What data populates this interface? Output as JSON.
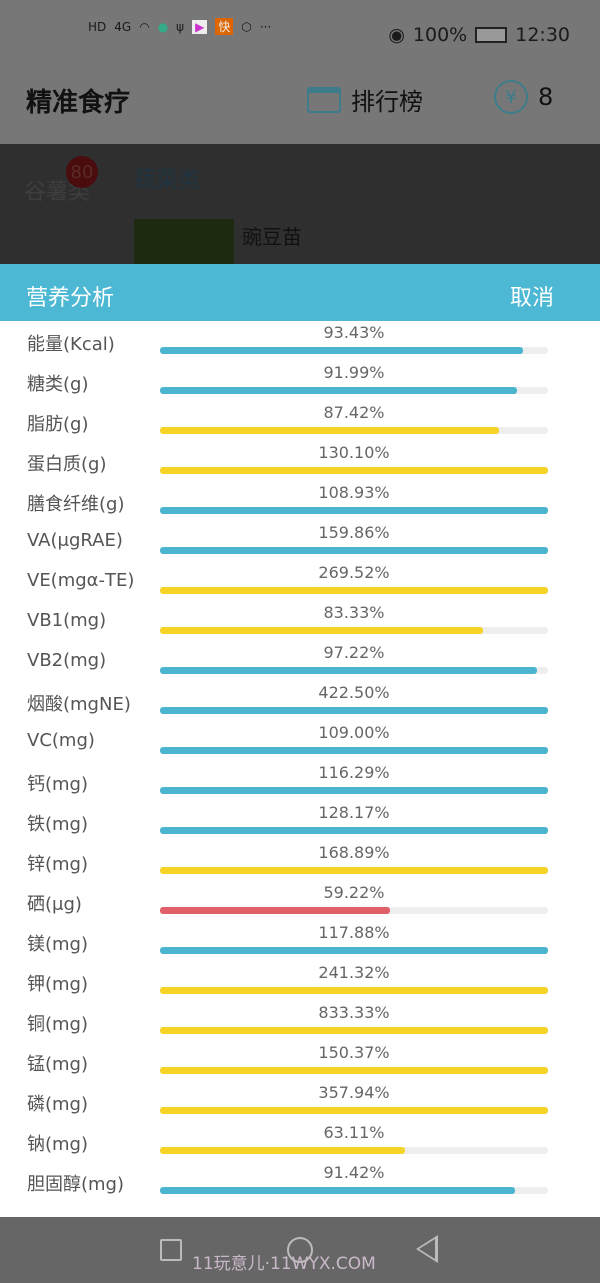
{
  "status_bar": {
    "battery": "100%",
    "time": "12:30",
    "network": "4G",
    "icons": [
      "hd-icon",
      "signal-icon",
      "wifi-icon",
      "app-icon",
      "usb-icon",
      "video-icon",
      "kuaishou-icon",
      "shield-icon",
      "more-icon",
      "eye-icon",
      "battery-icon"
    ]
  },
  "header": {
    "title": "精准食疗",
    "ranking_label": "排行榜",
    "coin_symbol": "¥",
    "coin_count": "8"
  },
  "background": {
    "category": "谷薯类",
    "badge": "80",
    "subcategory": "蔬菜类",
    "food_name": "豌豆苗"
  },
  "panel": {
    "title": "营养分析",
    "cancel_label": "取消"
  },
  "colors": {
    "blue": "#4bb5cf",
    "yellow": "#f5d327",
    "red": "#e0606a",
    "header": "#4cb8d4"
  },
  "nutrients": [
    {
      "label": "能量(Kcal)",
      "value": "93.43%",
      "percent": 93.43,
      "color": "blue"
    },
    {
      "label": "糖类(g)",
      "value": "91.99%",
      "percent": 91.99,
      "color": "blue"
    },
    {
      "label": "脂肪(g)",
      "value": "87.42%",
      "percent": 87.42,
      "color": "yellow"
    },
    {
      "label": "蛋白质(g)",
      "value": "130.10%",
      "percent": 130.1,
      "color": "yellow"
    },
    {
      "label": "膳食纤维(g)",
      "value": "108.93%",
      "percent": 108.93,
      "color": "blue"
    },
    {
      "label": "VA(μgRAE)",
      "value": "159.86%",
      "percent": 159.86,
      "color": "blue"
    },
    {
      "label": "VE(mgα-TE)",
      "value": "269.52%",
      "percent": 269.52,
      "color": "yellow"
    },
    {
      "label": "VB1(mg)",
      "value": "83.33%",
      "percent": 83.33,
      "color": "yellow"
    },
    {
      "label": "VB2(mg)",
      "value": "97.22%",
      "percent": 97.22,
      "color": "blue"
    },
    {
      "label": "烟酸(mgNE)",
      "value": "422.50%",
      "percent": 422.5,
      "color": "blue"
    },
    {
      "label": "VC(mg)",
      "value": "109.00%",
      "percent": 109.0,
      "color": "blue"
    },
    {
      "label": "钙(mg)",
      "value": "116.29%",
      "percent": 116.29,
      "color": "blue"
    },
    {
      "label": "铁(mg)",
      "value": "128.17%",
      "percent": 128.17,
      "color": "blue"
    },
    {
      "label": "锌(mg)",
      "value": "168.89%",
      "percent": 168.89,
      "color": "yellow"
    },
    {
      "label": "硒(μg)",
      "value": "59.22%",
      "percent": 59.22,
      "color": "red"
    },
    {
      "label": "镁(mg)",
      "value": "117.88%",
      "percent": 117.88,
      "color": "blue"
    },
    {
      "label": "钾(mg)",
      "value": "241.32%",
      "percent": 241.32,
      "color": "yellow"
    },
    {
      "label": "铜(mg)",
      "value": "833.33%",
      "percent": 833.33,
      "color": "yellow"
    },
    {
      "label": "锰(mg)",
      "value": "150.37%",
      "percent": 150.37,
      "color": "yellow"
    },
    {
      "label": "磷(mg)",
      "value": "357.94%",
      "percent": 357.94,
      "color": "yellow"
    },
    {
      "label": "钠(mg)",
      "value": "63.11%",
      "percent": 63.11,
      "color": "yellow"
    },
    {
      "label": "胆固醇(mg)",
      "value": "91.42%",
      "percent": 91.42,
      "color": "blue"
    }
  ],
  "watermark": "11玩意儿·11WYX.COM"
}
